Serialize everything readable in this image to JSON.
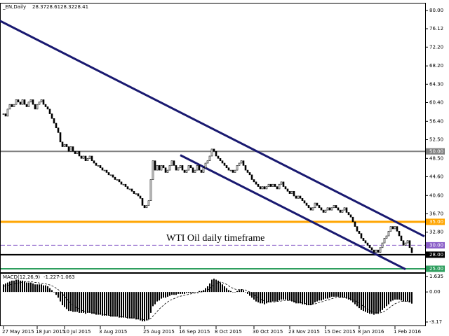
{
  "chart_data": {
    "type": "candlestick",
    "header": {
      "symbol": "_EN,Daily",
      "ohlc": [
        28.37,
        28.61,
        28.32,
        28.41
      ]
    },
    "annotation": "WTI Oil daily timeframe",
    "color": "#000000",
    "values": [
      58,
      57.5,
      59,
      60,
      59.5,
      60,
      61,
      60.5,
      60,
      61,
      60,
      59.5,
      60.5,
      61,
      60,
      59,
      60,
      60.5,
      61,
      60,
      59.5,
      59,
      58,
      57,
      56,
      55,
      54,
      52,
      51,
      51.5,
      51,
      50,
      51,
      50,
      49.5,
      50,
      49,
      48.5,
      49,
      48,
      48.5,
      49,
      48,
      47.5,
      47,
      47,
      46.5,
      46,
      46,
      45.5,
      45,
      45,
      44.5,
      44,
      44,
      43.5,
      43,
      43,
      42.5,
      42,
      42,
      41.5,
      41,
      41,
      40.5,
      40,
      38.5,
      38,
      38.5,
      39.5,
      44,
      48,
      46,
      47,
      46,
      47,
      46.5,
      45.5,
      46,
      47,
      48,
      47,
      46,
      46.5,
      47,
      46,
      45.5,
      46,
      47,
      46.5,
      45.5,
      46,
      47,
      46,
      45.5,
      46.5,
      47.5,
      48,
      49,
      50.5,
      50,
      49,
      48.5,
      48,
      47.5,
      47,
      46.5,
      46,
      46,
      45.5,
      46,
      47,
      47.5,
      48,
      47,
      46,
      45.5,
      45,
      44,
      43.5,
      43,
      42.5,
      42,
      42.5,
      42,
      42.5,
      43,
      42.5,
      43,
      42.5,
      42,
      43,
      43.5,
      42.5,
      42,
      41.5,
      41,
      41.5,
      40.5,
      40,
      40.5,
      40,
      39.5,
      39,
      38.5,
      38,
      37.5,
      38,
      39,
      38.5,
      38,
      37.5,
      37,
      37.5,
      38,
      37.5,
      38,
      38.5,
      38,
      37.5,
      37,
      37.5,
      38,
      37,
      36.5,
      36,
      35,
      34,
      33,
      32.5,
      31.5,
      31,
      30.5,
      30,
      29.5,
      29,
      28.5,
      29,
      28.5,
      29.5,
      30.5,
      31.5,
      32,
      33,
      34,
      33.5,
      34,
      33,
      32,
      31,
      30,
      30.5,
      31,
      29.5,
      28.41
    ],
    "ylim": [
      24.25,
      81.49
    ],
    "yticks": [
      {
        "value": 80,
        "label": "80.00"
      },
      {
        "value": 76.12,
        "label": "76.12"
      },
      {
        "value": 72.2,
        "label": "72.20"
      },
      {
        "value": 68.2,
        "label": "68.20"
      },
      {
        "value": 64.3,
        "label": "64.30"
      },
      {
        "value": 60.4,
        "label": "60.40"
      },
      {
        "value": 56.4,
        "label": "56.40"
      },
      {
        "value": 52.5,
        "label": "52.50"
      },
      {
        "value": 48.5,
        "label": "48.50"
      },
      {
        "value": 44.6,
        "label": "44.60"
      },
      {
        "value": 40.6,
        "label": "40.60"
      },
      {
        "value": 36.7,
        "label": "36.70"
      },
      {
        "value": 32.8,
        "label": "32.80"
      }
    ],
    "xticks": [
      {
        "value": 0,
        "label": "27 May 2015"
      },
      {
        "value": 16,
        "label": "18 Jun 2015"
      },
      {
        "value": 29,
        "label": "10 Jul 2015"
      },
      {
        "value": 46,
        "label": "3 Aug 2015"
      },
      {
        "value": 67,
        "label": "25 Aug 2015"
      },
      {
        "value": 84,
        "label": "16 Sep 2015"
      },
      {
        "value": 101,
        "label": "8 Oct 2015"
      },
      {
        "value": 119,
        "label": "30 Oct 2015"
      },
      {
        "value": 136,
        "label": "23 Nov 2015"
      },
      {
        "value": 153,
        "label": "15 Dec 2015"
      },
      {
        "value": 169,
        "label": "8 Jan 2016"
      },
      {
        "value": 186,
        "label": "1 Feb 2016"
      }
    ],
    "levels": [
      {
        "value": 50,
        "label": "50.00",
        "color": "#808080",
        "dash": false
      },
      {
        "value": 35,
        "label": "35.00",
        "color": "#ffa500",
        "dash": false
      },
      {
        "value": 30,
        "label": "30.00",
        "color": "#8a5fc8",
        "dash": true
      },
      {
        "value": 28,
        "label": "28.00",
        "color": "#000000",
        "dash": false
      },
      {
        "value": 25,
        "label": "25.00",
        "color": "#2e9e5e",
        "dash": false
      }
    ],
    "trendlines": [
      {
        "color": "#191970",
        "start": [
          -1.7,
          77.8
        ],
        "end": [
          200,
          31.9
        ]
      },
      {
        "color": "#191970",
        "start": [
          84,
          49.2
        ],
        "end": [
          191,
          24.9
        ]
      }
    ],
    "macd": {
      "name": "MACD(12,26,9)",
      "ylim": [
        -3.54,
        1.93
      ],
      "yticks": [
        1.635,
        {
          "value": 0,
          "label": "0.00"
        },
        -3.17
      ],
      "histogram": [
        0.8,
        0.9,
        1.0,
        1.1,
        1.2,
        1.2,
        1.3,
        1.3,
        1.2,
        1.2,
        1.1,
        1.0,
        1.0,
        1.0,
        0.9,
        0.8,
        0.8,
        0.8,
        0.8,
        0.7,
        0.7,
        0.6,
        0.4,
        0.2,
        0,
        -0.3,
        -0.6,
        -1.0,
        -1.4,
        -1.6,
        -1.8,
        -2.0,
        -2.0,
        -2.1,
        -2.1,
        -2.1,
        -2.2,
        -2.2,
        -2.2,
        -2.3,
        -2.2,
        -2.2,
        -2.3,
        -2.3,
        -2.4,
        -2.4,
        -2.4,
        -2.5,
        -2.5,
        -2.5,
        -2.5,
        -2.6,
        -2.6,
        -2.6,
        -2.6,
        -2.7,
        -2.7,
        -2.7,
        -2.7,
        -2.8,
        -2.8,
        -2.8,
        -2.8,
        -2.9,
        -2.9,
        -3.0,
        -3.1,
        -3.1,
        -3.0,
        -2.9,
        -2.2,
        -1.5,
        -1.3,
        -1.0,
        -0.9,
        -0.7,
        -0.6,
        -0.6,
        -0.5,
        -0.4,
        -0.3,
        -0.3,
        -0.3,
        -0.2,
        -0.2,
        -0.2,
        -0.2,
        -0.1,
        -0.1,
        -0.1,
        -0.1,
        0,
        0,
        0.1,
        0.1,
        0.2,
        0.4,
        0.6,
        0.9,
        1.3,
        1.4,
        1.3,
        1.2,
        1.0,
        0.8,
        0.6,
        0.4,
        0.2,
        0.1,
        0,
        0,
        0.1,
        0.2,
        0.3,
        0.2,
        0,
        -0.2,
        -0.4,
        -0.6,
        -0.8,
        -1.0,
        -1.1,
        -1.2,
        -1.2,
        -1.3,
        -1.2,
        -1.1,
        -1.1,
        -1.0,
        -1.0,
        -1.0,
        -0.9,
        -0.8,
        -0.8,
        -0.8,
        -0.9,
        -0.9,
        -1.0,
        -1.1,
        -1.2,
        -1.2,
        -1.2,
        -1.3,
        -1.3,
        -1.4,
        -1.4,
        -1.4,
        -1.3,
        -1.1,
        -1.0,
        -0.9,
        -0.9,
        -0.8,
        -0.7,
        -0.7,
        -0.6,
        -0.5,
        -0.5,
        -0.5,
        -0.5,
        -0.6,
        -0.6,
        -0.6,
        -0.7,
        -0.8,
        -0.9,
        -1.1,
        -1.3,
        -1.5,
        -1.7,
        -1.9,
        -2.0,
        -2.1,
        -2.2,
        -2.3,
        -2.3,
        -2.4,
        -2.3,
        -2.3,
        -2.1,
        -1.9,
        -1.7,
        -1.5,
        -1.3,
        -1.0,
        -0.9,
        -0.8,
        -0.8,
        -0.8,
        -0.9,
        -1.0,
        -1.0,
        -1.0,
        -1.1,
        -1.227
      ],
      "signal": [
        0.6,
        0.65,
        0.7,
        0.75,
        0.8,
        0.85,
        0.9,
        0.95,
        1.0,
        1.05,
        1.1,
        1.1,
        1.1,
        1.1,
        1.05,
        1.0,
        1.0,
        0.95,
        0.9,
        0.9,
        0.85,
        0.8,
        0.75,
        0.65,
        0.55,
        0.4,
        0.25,
        0.05,
        -0.2,
        -0.45,
        -0.7,
        -0.95,
        -1.2,
        -1.4,
        -1.55,
        -1.7,
        -1.8,
        -1.9,
        -2.0,
        -2.05,
        -2.1,
        -2.15,
        -2.2,
        -2.2,
        -2.25,
        -2.3,
        -2.3,
        -2.35,
        -2.4,
        -2.4,
        -2.45,
        -2.5,
        -2.5,
        -2.55,
        -2.55,
        -2.6,
        -2.6,
        -2.65,
        -2.65,
        -2.7,
        -2.7,
        -2.75,
        -2.75,
        -2.8,
        -2.8,
        -2.85,
        -2.9,
        -2.95,
        -2.95,
        -2.95,
        -2.8,
        -2.55,
        -2.3,
        -2.05,
        -1.8,
        -1.6,
        -1.4,
        -1.2,
        -1.05,
        -0.9,
        -0.8,
        -0.7,
        -0.6,
        -0.5,
        -0.45,
        -0.4,
        -0.35,
        -0.3,
        -0.25,
        -0.2,
        -0.15,
        -0.12,
        -0.1,
        -0.05,
        0,
        0.05,
        0.1,
        0.2,
        0.35,
        0.55,
        0.75,
        0.9,
        1.0,
        1.05,
        1.0,
        0.9,
        0.8,
        0.65,
        0.5,
        0.4,
        0.3,
        0.25,
        0.25,
        0.25,
        0.25,
        0.2,
        0.1,
        0,
        -0.15,
        -0.3,
        -0.45,
        -0.6,
        -0.75,
        -0.85,
        -0.95,
        -1.0,
        -1.05,
        -1.05,
        -1.05,
        -1.05,
        -1.0,
        -1.0,
        -0.95,
        -0.9,
        -0.9,
        -0.9,
        -0.9,
        -0.9,
        -0.95,
        -1.0,
        -1.05,
        -1.1,
        -1.15,
        -1.2,
        -1.25,
        -1.3,
        -1.3,
        -1.3,
        -1.25,
        -1.2,
        -1.1,
        -1.05,
        -1.0,
        -0.9,
        -0.85,
        -0.8,
        -0.7,
        -0.65,
        -0.6,
        -0.55,
        -0.55,
        -0.55,
        -0.55,
        -0.6,
        -0.65,
        -0.7,
        -0.8,
        -0.9,
        -1.05,
        -1.2,
        -1.35,
        -1.5,
        -1.65,
        -1.8,
        -1.95,
        -2.05,
        -2.15,
        -2.2,
        -2.2,
        -2.2,
        -2.15,
        -2.05,
        -1.9,
        -1.75,
        -1.55,
        -1.4,
        -1.25,
        -1.15,
        -1.05,
        -1.0,
        -1.0,
        -1.0,
        -1.0,
        -1.05,
        -1.063
      ]
    }
  }
}
